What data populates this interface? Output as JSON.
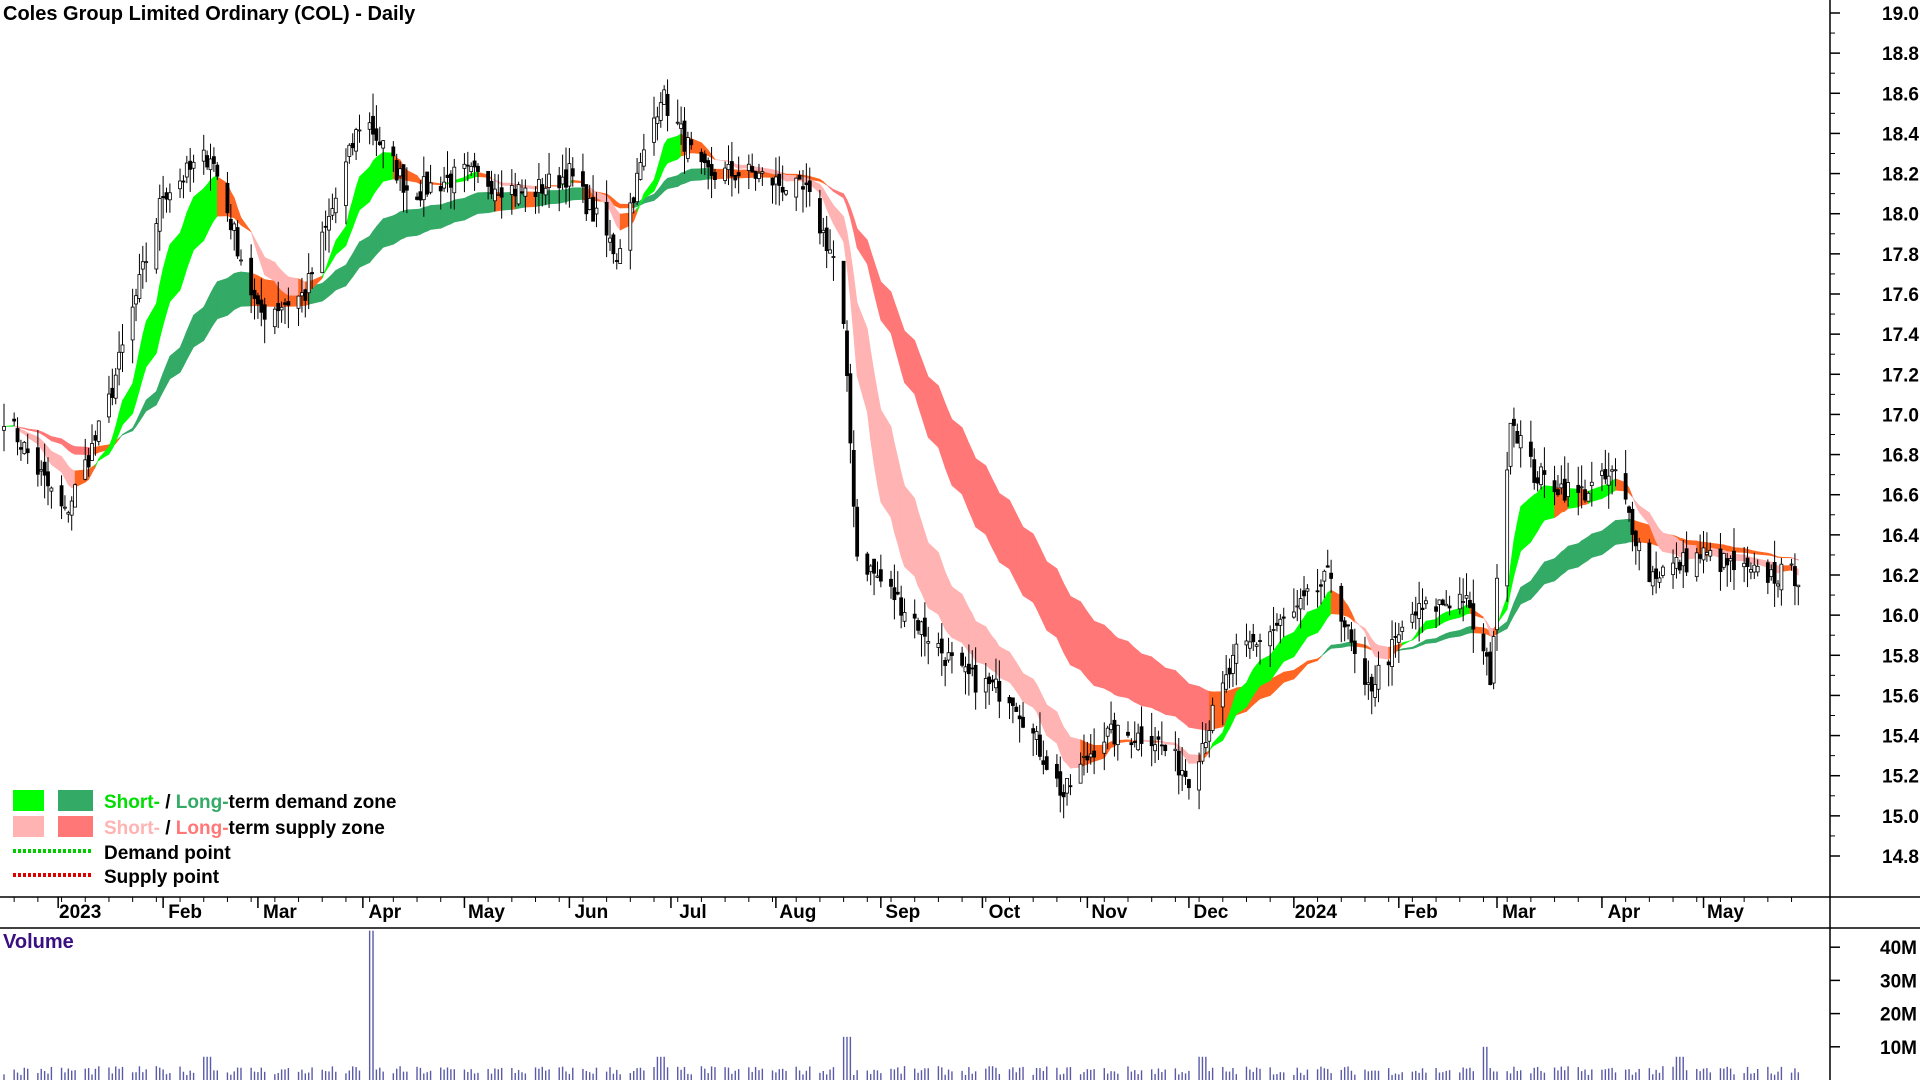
{
  "chart_data": [
    {
      "type": "candlestick",
      "title": "Coles Group Limited Ordinary (COL) - Daily",
      "x_labels": [
        "2023",
        "Feb",
        "Mar",
        "Apr",
        "May",
        "Jun",
        "Jul",
        "Aug",
        "Sep",
        "Oct",
        "Nov",
        "Dec",
        "2024",
        "Feb",
        "Mar",
        "Apr",
        "May"
      ],
      "y_ticks": [
        "19.0",
        "18.8",
        "18.6",
        "18.4",
        "18.2",
        "18.0",
        "17.8",
        "17.6",
        "17.4",
        "17.2",
        "17.0",
        "16.8",
        "16.6",
        "16.4",
        "16.2",
        "16.0",
        "15.8",
        "15.6",
        "15.4",
        "15.2",
        "15.0",
        "14.8"
      ],
      "ylim": [
        14.75,
        19.05
      ],
      "price_path": [
        [
          "2022-12-16",
          17.0
        ],
        [
          "2023-01-03",
          16.5
        ],
        [
          "2023-01-15",
          17.0
        ],
        [
          "2023-02-01",
          18.1
        ],
        [
          "2023-02-15",
          18.3
        ],
        [
          "2023-03-01",
          17.5
        ],
        [
          "2023-03-15",
          17.6
        ],
        [
          "2023-04-01",
          18.5
        ],
        [
          "2023-04-15",
          18.1
        ],
        [
          "2023-05-01",
          18.2
        ],
        [
          "2023-05-20",
          18.1
        ],
        [
          "2023-06-01",
          18.2
        ],
        [
          "2023-06-15",
          17.8
        ],
        [
          "2023-06-28",
          18.6
        ],
        [
          "2023-07-10",
          18.2
        ],
        [
          "2023-07-25",
          18.2
        ],
        [
          "2023-08-10",
          18.1
        ],
        [
          "2023-08-20",
          17.7
        ],
        [
          "2023-08-25",
          16.3
        ],
        [
          "2023-09-10",
          16.0
        ],
        [
          "2023-09-25",
          15.7
        ],
        [
          "2023-10-10",
          15.6
        ],
        [
          "2023-10-25",
          15.1
        ],
        [
          "2023-11-05",
          15.4
        ],
        [
          "2023-11-20",
          15.4
        ],
        [
          "2023-12-01",
          15.2
        ],
        [
          "2023-12-15",
          15.8
        ],
        [
          "2024-01-01",
          16.0
        ],
        [
          "2024-01-12",
          16.2
        ],
        [
          "2024-01-22",
          15.6
        ],
        [
          "2024-02-05",
          16.0
        ],
        [
          "2024-02-20",
          16.1
        ],
        [
          "2024-02-28",
          15.7
        ],
        [
          "2024-03-05",
          17.0
        ],
        [
          "2024-03-12",
          16.7
        ],
        [
          "2024-03-25",
          16.6
        ],
        [
          "2024-04-05",
          16.7
        ],
        [
          "2024-04-15",
          16.2
        ],
        [
          "2024-05-01",
          16.3
        ],
        [
          "2024-05-15",
          16.2
        ],
        [
          "2024-05-28",
          16.2
        ]
      ],
      "zones": [
        {
          "name": "Short-term demand zone",
          "color": "#00ff00"
        },
        {
          "name": "Long-term demand zone",
          "color": "#33aa66"
        },
        {
          "name": "Short-term supply zone",
          "color": "#ffb3b3"
        },
        {
          "name": "Long-term supply zone",
          "color": "#ff7777"
        },
        {
          "name": "transition zone",
          "color": "#ff6622"
        }
      ],
      "legend": {
        "row1": {
          "short": "Short-",
          "sep": " / ",
          "long": "Long-",
          "rest": "term demand zone"
        },
        "row2": {
          "short": "Short-",
          "sep": " / ",
          "long": "Long-",
          "rest": "term supply zone"
        },
        "row3": "Demand point",
        "row4": "Supply point",
        "placement": "bottom-left"
      },
      "colors": {
        "demand_short": "#00ff00",
        "demand_long": "#33aa66",
        "supply_short": "#ffb3b3",
        "supply_long": "#ff7777",
        "transition": "#ff6622",
        "demand_point": "#00cc00",
        "supply_point": "#dd0000"
      }
    },
    {
      "type": "bar",
      "title": "Volume",
      "y_ticks": [
        "40M",
        "30M",
        "20M",
        "10M"
      ],
      "ylim": [
        0,
        45
      ],
      "unit": "M",
      "spikes": [
        [
          "2023-04-03",
          45
        ],
        [
          "2023-08-22",
          13
        ],
        [
          "2024-02-26",
          10
        ],
        [
          "2023-02-14",
          7
        ],
        [
          "2023-06-28",
          7
        ],
        [
          "2023-12-05",
          7
        ],
        [
          "2024-04-24",
          7
        ]
      ],
      "baseline": 3
    }
  ]
}
